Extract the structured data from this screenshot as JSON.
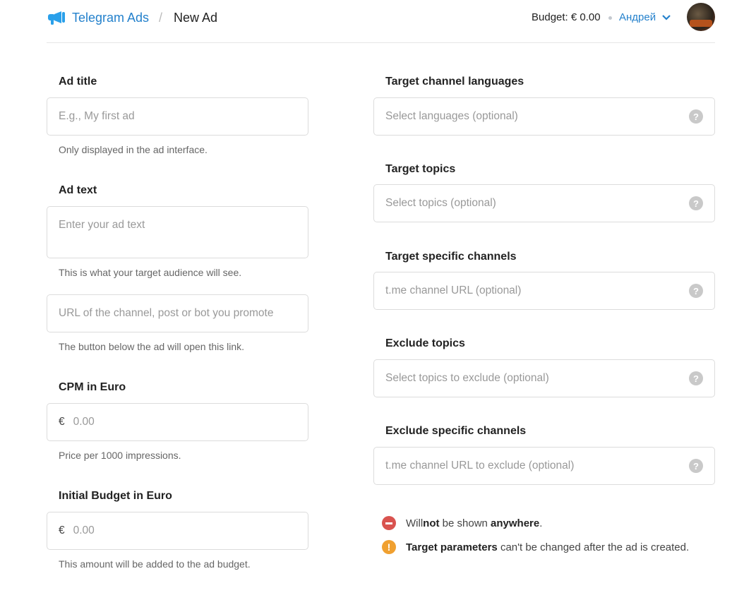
{
  "header": {
    "brand": "Telegram Ads",
    "separator": "/",
    "page": "New Ad",
    "budget": "Budget: € 0.00",
    "user": "Андрей"
  },
  "left": {
    "ad_title": {
      "label": "Ad title",
      "placeholder": "E.g., My first ad",
      "hint": "Only displayed in the ad interface."
    },
    "ad_text": {
      "label": "Ad text",
      "placeholder": "Enter your ad text",
      "hint": "This is what your target audience will see."
    },
    "url": {
      "placeholder": "URL of the channel, post or bot you promote",
      "hint": "The button below the ad will open this link."
    },
    "cpm": {
      "label": "CPM in Euro",
      "currency": "€",
      "placeholder": "0.00",
      "hint": "Price per 1000 impressions."
    },
    "budget": {
      "label": "Initial Budget in Euro",
      "currency": "€",
      "placeholder": "0.00",
      "hint": "This amount will be added to the ad budget."
    }
  },
  "right": {
    "languages": {
      "label": "Target channel languages",
      "placeholder": "Select languages (optional)"
    },
    "topics": {
      "label": "Target topics",
      "placeholder": "Select topics (optional)"
    },
    "channels": {
      "label": "Target specific channels",
      "placeholder": "t.me channel URL (optional)"
    },
    "exclude_topics": {
      "label": "Exclude topics",
      "placeholder": "Select topics to exclude (optional)"
    },
    "exclude_channels": {
      "label": "Exclude specific channels",
      "placeholder": "t.me channel URL to exclude (optional)"
    },
    "help": "?"
  },
  "notes": {
    "n1": {
      "a": "Will ",
      "b": "not",
      "c": " be shown ",
      "d": "anywhere",
      "e": ".",
      "color": "#d9534f"
    },
    "n2": {
      "a": "Target parameters",
      "b": " can't be changed after the ad is created.",
      "icon": "!",
      "color": "#f0a030"
    }
  },
  "colors": {
    "accent": "#2481cc"
  }
}
